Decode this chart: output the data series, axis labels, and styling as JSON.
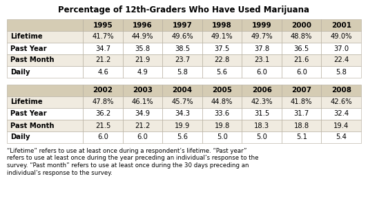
{
  "title": "Percentage of 12th-Graders Who Have Used Marijuana",
  "table1_cols": [
    "",
    "1995",
    "1996",
    "1997",
    "1998",
    "1999",
    "2000",
    "2001"
  ],
  "table1_rows": [
    [
      "Lifetime",
      "41.7%",
      "44.9%",
      "49.6%",
      "49.1%",
      "49.7%",
      "48.8%",
      "49.0%"
    ],
    [
      "Past Year",
      "34.7",
      "35.8",
      "38.5",
      "37.5",
      "37.8",
      "36.5",
      "37.0"
    ],
    [
      "Past Month",
      "21.2",
      "21.9",
      "23.7",
      "22.8",
      "23.1",
      "21.6",
      "22.4"
    ],
    [
      "Daily",
      "4.6",
      "4.9",
      "5.8",
      "5.6",
      "6.0",
      "6.0",
      "5.8"
    ]
  ],
  "table2_cols": [
    "",
    "2002",
    "2003",
    "2004",
    "2005",
    "2006",
    "2007",
    "2008"
  ],
  "table2_rows": [
    [
      "Lifetime",
      "47.8%",
      "46.1%",
      "45.7%",
      "44.8%",
      "42.3%",
      "41.8%",
      "42.6%"
    ],
    [
      "Past Year",
      "36.2",
      "34.9",
      "34.3",
      "33.6",
      "31.5",
      "31.7",
      "32.4"
    ],
    [
      "Past Month",
      "21.5",
      "21.2",
      "19.9",
      "19.8",
      "18.3",
      "18.8",
      "19.4"
    ],
    [
      "Daily",
      "6.0",
      "6.0",
      "5.6",
      "5.0",
      "5.0",
      "5.1",
      "5.4"
    ]
  ],
  "footnote_lines": [
    "“Lifetime” refers to use at least once during a respondent’s lifetime. “Past year”",
    "refers to use at least once during the year preceding an individual’s response to the",
    "survey. “Past month” refers to use at least once during the 30 days preceding an",
    "individual’s response to the survey."
  ],
  "header_bg": "#d5ccb4",
  "row_bg_even": "#f0ebe0",
  "row_bg_odd": "#ffffff",
  "border_color": "#b0a898",
  "text_color": "#000000",
  "title_color": "#000000",
  "bg_color": "#ffffff",
  "title_fontsize": 8.5,
  "header_fontsize": 7.5,
  "cell_fontsize": 7.2,
  "footnote_fontsize": 6.2
}
